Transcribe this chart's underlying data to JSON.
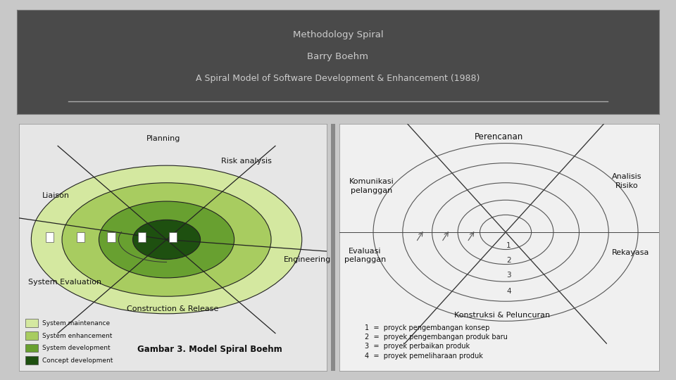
{
  "title_line1": "Methodology Spiral",
  "title_line2": "Barry Boehm",
  "title_line3": "A Spiral Model of Software Development & Enhancement (1988)",
  "header_bg": "#4a4a4a",
  "header_text_color": "#cccccc",
  "main_bg": "#c8c8c8",
  "left_panel_bg": "#e6e6e6",
  "right_panel_bg": "#f0f0f0",
  "left_label_planning": "Planning",
  "left_label_risk": "Risk analysis",
  "left_label_liaison": "Liaison",
  "left_label_engineering": "Engineering",
  "left_label_system_eval": "System Evaluation",
  "left_label_construction": "Construction & Release",
  "left_legend": [
    {
      "label": "System maintenance",
      "color": "#d4e8a0"
    },
    {
      "label": "System enhancement",
      "color": "#a8cc60"
    },
    {
      "label": "System development",
      "color": "#68a030"
    },
    {
      "label": "Concept development",
      "color": "#1e5010"
    }
  ],
  "left_caption": "Gambar 3. Model Spiral Boehm",
  "right_label_top": "Perencanan",
  "right_label_left_top": "Komunikasi\npelanggan",
  "right_label_right_top": "Analisis\nRisiko",
  "right_label_left_bottom": "Evaluasi\npelanggan",
  "right_label_right_bottom": "Rekayasa",
  "right_label_bottom": "Konstruksi & Peluncuran",
  "right_legend": [
    "1  =  proyck pengembangan konsep",
    "2  =  proyek pengembangan produk baru",
    "3  =  proyek perbaikan produk",
    "4  =  proyek pemeliharaan produk"
  ],
  "circle_numbers": [
    "1",
    "2",
    "3",
    "4"
  ]
}
